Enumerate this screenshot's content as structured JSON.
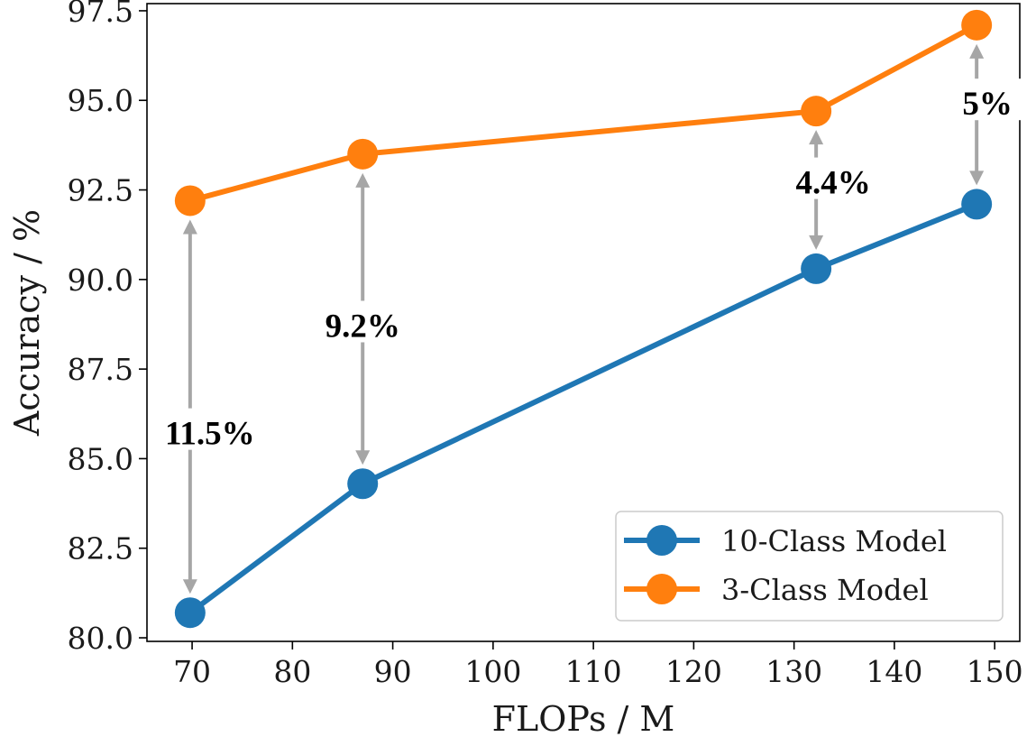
{
  "chart_data": {
    "type": "line",
    "title": "",
    "xlabel": "FLOPs / M",
    "ylabel": "Accuracy / %",
    "xlim": [
      65.5,
      152.5
    ],
    "ylim": [
      79.9,
      97.7
    ],
    "xticks": [
      70,
      80,
      90,
      100,
      110,
      120,
      130,
      140,
      150
    ],
    "xtick_labels": [
      "70",
      "80",
      "90",
      "100",
      "110",
      "120",
      "130",
      "140",
      "150"
    ],
    "yticks": [
      80.0,
      82.5,
      85.0,
      87.5,
      90.0,
      92.5,
      95.0,
      97.5
    ],
    "ytick_labels": [
      "80.0",
      "82.5",
      "85.0",
      "87.5",
      "90.0",
      "92.5",
      "95.0",
      "97.5"
    ],
    "grid": false,
    "legend_position": "lower-right",
    "x": [
      69.8,
      87.0,
      132.2,
      148.2
    ],
    "series": [
      {
        "name": "10-Class Model",
        "color": "#1f77b4",
        "values": [
          80.7,
          84.3,
          90.3,
          92.1
        ]
      },
      {
        "name": "3-Class Model",
        "color": "#ff7f0e",
        "values": [
          92.2,
          93.5,
          94.7,
          97.1
        ]
      }
    ],
    "annotations": [
      {
        "x": 69.8,
        "text": "11.5%",
        "y_label": 85.7
      },
      {
        "x": 87.0,
        "text": "9.2%",
        "y_label": 88.7
      },
      {
        "x": 132.2,
        "text": "4.4%",
        "y_label": 92.7
      },
      {
        "x": 148.2,
        "text": "5%",
        "y_label": 94.9
      }
    ],
    "annotation_arrow_color": "#a6a6a6"
  }
}
